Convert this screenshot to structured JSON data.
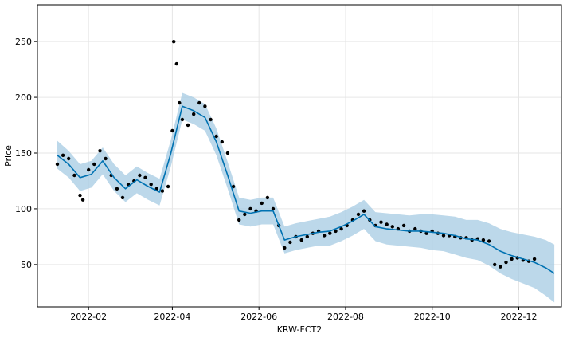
{
  "chart_data": {
    "type": "line",
    "title": "",
    "xlabel": "KRW-FCT2",
    "ylabel": "Price",
    "xlim": [
      "2021-12-27",
      "2022-12-31"
    ],
    "ylim": [
      12,
      283
    ],
    "grid": true,
    "x_ticks": [
      "2022-02-01",
      "2022-04-01",
      "2022-06-01",
      "2022-08-01",
      "2022-10-01",
      "2022-12-01"
    ],
    "x_tick_labels": [
      "2022-02",
      "2022-04",
      "2022-06",
      "2022-08",
      "2022-10",
      "2022-12"
    ],
    "y_ticks": [
      50,
      100,
      150,
      200,
      250
    ],
    "colors": {
      "forecast": "#0072B2",
      "interval": "#a6cbe3",
      "observed": "#000000",
      "grid": "#e6e6e6"
    },
    "series": [
      {
        "kind": "forecast",
        "x": [
          "2022-01-10",
          "2022-01-18",
          "2022-01-26",
          "2022-02-03",
          "2022-02-11",
          "2022-02-19",
          "2022-02-27",
          "2022-03-07",
          "2022-03-15",
          "2022-03-23",
          "2022-03-31",
          "2022-04-08",
          "2022-04-16",
          "2022-04-24",
          "2022-05-02",
          "2022-05-10",
          "2022-05-18",
          "2022-05-26",
          "2022-06-03",
          "2022-06-11",
          "2022-06-19",
          "2022-06-27",
          "2022-07-05",
          "2022-07-13",
          "2022-07-21",
          "2022-07-29",
          "2022-08-06",
          "2022-08-14",
          "2022-08-22",
          "2022-08-30",
          "2022-09-07",
          "2022-09-15",
          "2022-09-23",
          "2022-10-01",
          "2022-10-09",
          "2022-10-17",
          "2022-10-25",
          "2022-11-02",
          "2022-11-10",
          "2022-11-18",
          "2022-11-26",
          "2022-12-04",
          "2022-12-12",
          "2022-12-20",
          "2022-12-26"
        ],
        "y": [
          148,
          140,
          128,
          131,
          143,
          128,
          118,
          126,
          120,
          115,
          150,
          192,
          188,
          182,
          160,
          130,
          98,
          96,
          98,
          98,
          72,
          75,
          77,
          79,
          80,
          84,
          89,
          95,
          84,
          82,
          81,
          80,
          80,
          79,
          78,
          76,
          73,
          72,
          68,
          62,
          58,
          55,
          52,
          47,
          42
        ]
      },
      {
        "kind": "interval",
        "x": [
          "2022-01-10",
          "2022-01-18",
          "2022-01-26",
          "2022-02-03",
          "2022-02-11",
          "2022-02-19",
          "2022-02-27",
          "2022-03-07",
          "2022-03-15",
          "2022-03-23",
          "2022-03-31",
          "2022-04-08",
          "2022-04-16",
          "2022-04-24",
          "2022-05-02",
          "2022-05-10",
          "2022-05-18",
          "2022-05-26",
          "2022-06-03",
          "2022-06-11",
          "2022-06-19",
          "2022-06-27",
          "2022-07-05",
          "2022-07-13",
          "2022-07-21",
          "2022-07-29",
          "2022-08-06",
          "2022-08-14",
          "2022-08-22",
          "2022-08-30",
          "2022-09-07",
          "2022-09-15",
          "2022-09-23",
          "2022-10-01",
          "2022-10-09",
          "2022-10-17",
          "2022-10-25",
          "2022-11-02",
          "2022-11-10",
          "2022-11-18",
          "2022-11-26",
          "2022-12-04",
          "2022-12-12",
          "2022-12-20",
          "2022-12-26"
        ],
        "y_lower": [
          136,
          128,
          116,
          119,
          131,
          116,
          106,
          114,
          108,
          103,
          138,
          180,
          176,
          170,
          148,
          118,
          86,
          84,
          86,
          86,
          60,
          63,
          65,
          67,
          67,
          71,
          76,
          82,
          71,
          68,
          67,
          66,
          65,
          63,
          62,
          59,
          56,
          54,
          49,
          42,
          37,
          33,
          29,
          22,
          16
        ],
        "y_upper": [
          161,
          152,
          140,
          143,
          155,
          140,
          130,
          138,
          132,
          127,
          162,
          204,
          200,
          194,
          172,
          142,
          110,
          108,
          110,
          110,
          84,
          87,
          89,
          91,
          93,
          97,
          102,
          108,
          97,
          96,
          95,
          94,
          95,
          95,
          94,
          93,
          90,
          90,
          87,
          82,
          79,
          77,
          75,
          72,
          68
        ]
      },
      {
        "kind": "observed",
        "x": [
          "2022-01-10",
          "2022-01-14",
          "2022-01-18",
          "2022-01-22",
          "2022-01-26",
          "2022-01-28",
          "2022-02-01",
          "2022-02-05",
          "2022-02-09",
          "2022-02-13",
          "2022-02-17",
          "2022-02-21",
          "2022-02-25",
          "2022-03-01",
          "2022-03-05",
          "2022-03-09",
          "2022-03-13",
          "2022-03-17",
          "2022-03-21",
          "2022-03-25",
          "2022-03-29",
          "2022-04-01",
          "2022-04-02",
          "2022-04-04",
          "2022-04-06",
          "2022-04-08",
          "2022-04-12",
          "2022-04-16",
          "2022-04-20",
          "2022-04-24",
          "2022-04-28",
          "2022-05-02",
          "2022-05-06",
          "2022-05-10",
          "2022-05-14",
          "2022-05-18",
          "2022-05-22",
          "2022-05-26",
          "2022-05-30",
          "2022-06-03",
          "2022-06-07",
          "2022-06-11",
          "2022-06-15",
          "2022-06-19",
          "2022-06-23",
          "2022-06-27",
          "2022-07-01",
          "2022-07-05",
          "2022-07-09",
          "2022-07-13",
          "2022-07-17",
          "2022-07-21",
          "2022-07-25",
          "2022-07-29",
          "2022-08-02",
          "2022-08-06",
          "2022-08-10",
          "2022-08-14",
          "2022-08-18",
          "2022-08-22",
          "2022-08-26",
          "2022-08-30",
          "2022-09-03",
          "2022-09-07",
          "2022-09-11",
          "2022-09-15",
          "2022-09-19",
          "2022-09-23",
          "2022-09-27",
          "2022-10-01",
          "2022-10-05",
          "2022-10-09",
          "2022-10-13",
          "2022-10-17",
          "2022-10-21",
          "2022-10-25",
          "2022-10-29",
          "2022-11-02",
          "2022-11-06",
          "2022-11-10",
          "2022-11-14",
          "2022-11-18",
          "2022-11-22",
          "2022-11-26",
          "2022-11-30",
          "2022-12-04",
          "2022-12-08",
          "2022-12-12"
        ],
        "y": [
          140,
          148,
          145,
          130,
          112,
          108,
          135,
          140,
          152,
          145,
          130,
          118,
          110,
          122,
          125,
          130,
          128,
          122,
          118,
          116,
          120,
          170,
          250,
          230,
          195,
          180,
          175,
          185,
          195,
          192,
          180,
          165,
          160,
          150,
          120,
          90,
          95,
          100,
          98,
          105,
          110,
          100,
          85,
          65,
          70,
          75,
          72,
          75,
          78,
          80,
          76,
          78,
          80,
          82,
          85,
          90,
          95,
          98,
          90,
          85,
          88,
          86,
          84,
          82,
          85,
          80,
          82,
          80,
          78,
          80,
          78,
          76,
          76,
          75,
          74,
          74,
          72,
          73,
          72,
          71,
          50,
          48,
          52,
          55,
          56,
          54,
          53,
          55
        ]
      }
    ]
  }
}
